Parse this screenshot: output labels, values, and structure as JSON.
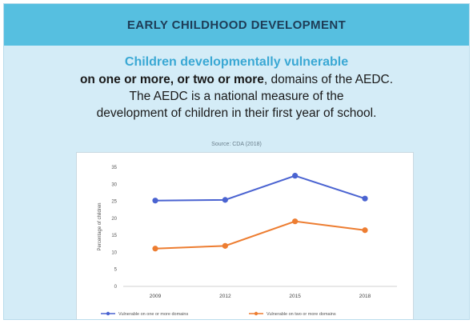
{
  "banner": {
    "title": "EARLY CHILDHOOD DEVELOPMENT"
  },
  "heading": {
    "title": "Children developmentally vulnerable",
    "line1_bold": "on one or more, or two or more",
    "line1_rest": ", domains of the AEDC.",
    "line2": "The AEDC is a national measure of the",
    "line3": "development of children in their first year of school."
  },
  "source": "Source: CDA (2018)",
  "colors": {
    "banner": "#56bfe0",
    "series1": "#4a63d1",
    "series2": "#ed7d31",
    "title_accent": "#3aa8d4"
  },
  "chart_data": {
    "type": "line",
    "x": [
      "2009",
      "2012",
      "2015",
      "2018"
    ],
    "ylabel": "Percentage of children",
    "ylim": [
      0,
      35
    ],
    "yticks": [
      "0",
      "5",
      "10",
      "15",
      "20",
      "25",
      "30",
      "35"
    ],
    "grid": false,
    "legend_position": "bottom",
    "series": [
      {
        "name": "Vulnerable on one or more domains",
        "values": [
          25.2,
          25.4,
          32.5,
          25.8
        ],
        "color": "#4a63d1"
      },
      {
        "name": "Vulnerable on two or more domains",
        "values": [
          11.1,
          11.9,
          19.1,
          16.5
        ],
        "color": "#ed7d31"
      }
    ]
  }
}
